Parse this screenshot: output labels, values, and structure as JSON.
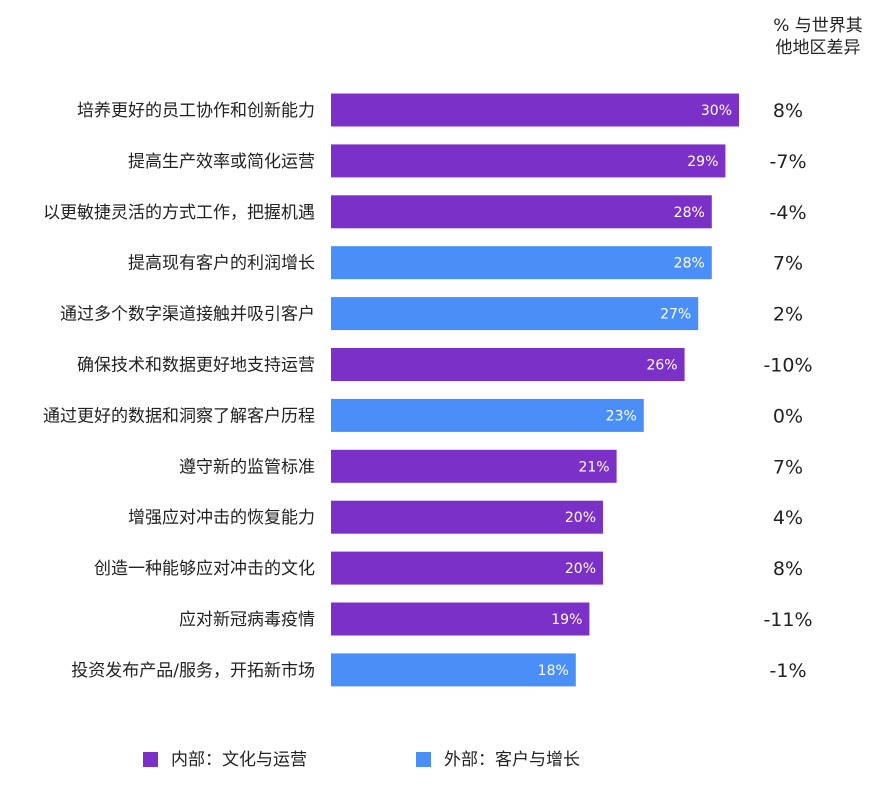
{
  "chart_data": {
    "type": "bar",
    "orientation": "horizontal",
    "value_header": [
      "% 与世界其",
      "他地区差异"
    ],
    "categories": [
      "培养更好的员工协作和创新能力",
      "提高生产效率或简化运营",
      "以更敏捷灵活的方式工作，把握机遇",
      "提高现有客户的利润增长",
      "通过多个数字渠道接触并吸引客户",
      "确保技术和数据更好地支持运营",
      "通过更好的数据和洞察了解客户历程",
      "遵守新的监管标准",
      "增强应对冲击的恢复能力",
      "创造一种能够应对冲击的文化",
      "应对新冠病毒疫情",
      "投资发布产品/服务，开拓新市场"
    ],
    "values": [
      30,
      29,
      28,
      28,
      27,
      26,
      23,
      21,
      20,
      20,
      19,
      18
    ],
    "value_labels": [
      "30%",
      "29%",
      "28%",
      "28%",
      "27%",
      "26%",
      "23%",
      "21%",
      "20%",
      "20%",
      "19%",
      "18%"
    ],
    "groups": [
      "internal",
      "internal",
      "internal",
      "external",
      "external",
      "internal",
      "external",
      "internal",
      "internal",
      "internal",
      "internal",
      "external"
    ],
    "differences": [
      "8%",
      "-7%",
      "-4%",
      "7%",
      "2%",
      "-10%",
      "0%",
      "7%",
      "4%",
      "8%",
      "-11%",
      "-1%"
    ],
    "legend": [
      {
        "key": "internal",
        "label": "内部：文化与运营",
        "color": "#7b30c8"
      },
      {
        "key": "external",
        "label": "外部：客户与增长",
        "color": "#4a8ef8"
      }
    ],
    "legend_position": "bottom",
    "grid": false
  }
}
